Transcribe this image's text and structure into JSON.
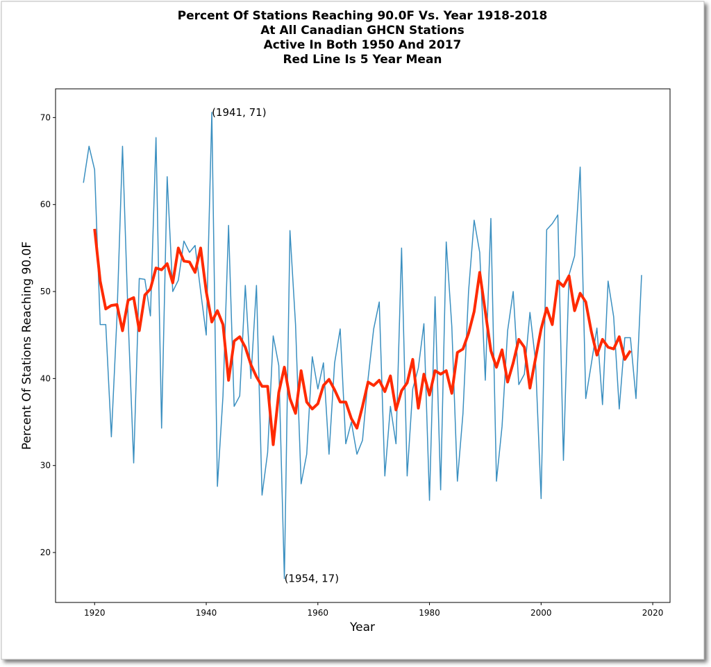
{
  "chart_data": {
    "type": "line",
    "title": [
      "Percent Of Stations Reaching 90.0F Vs. Year 1918-2018",
      "At All Canadian GHCN Stations",
      "Active In Both 1950 And 2017",
      "Red Line Is 5 Year Mean"
    ],
    "x_label": "Year",
    "y_label": "Percent Of Stations Reaching 90.0F",
    "x": [
      1918,
      1919,
      1920,
      1921,
      1922,
      1923,
      1924,
      1925,
      1926,
      1927,
      1928,
      1929,
      1930,
      1931,
      1932,
      1933,
      1934,
      1935,
      1936,
      1937,
      1938,
      1939,
      1940,
      1941,
      1942,
      1943,
      1944,
      1945,
      1946,
      1947,
      1948,
      1949,
      1950,
      1951,
      1952,
      1953,
      1954,
      1955,
      1956,
      1957,
      1958,
      1959,
      1960,
      1961,
      1962,
      1963,
      1964,
      1965,
      1966,
      1967,
      1968,
      1969,
      1970,
      1971,
      1972,
      1973,
      1974,
      1975,
      1976,
      1977,
      1978,
      1979,
      1980,
      1981,
      1982,
      1983,
      1984,
      1985,
      1986,
      1987,
      1988,
      1989,
      1990,
      1991,
      1992,
      1993,
      1994,
      1995,
      1996,
      1997,
      1998,
      1999,
      2000,
      2001,
      2002,
      2003,
      2004,
      2005,
      2006,
      2007,
      2008,
      2009,
      2010,
      2011,
      2012,
      2013,
      2014,
      2015,
      2016,
      2017,
      2018
    ],
    "series": [
      {
        "color": "#3a8fc0",
        "width": 1.5,
        "values": [
          62.5,
          66.7,
          64,
          46.2,
          46.2,
          33.3,
          47,
          66.7,
          47,
          30.3,
          51.5,
          51.4,
          47.2,
          67.7,
          34.3,
          63.2,
          50,
          51.3,
          55.8,
          54.5,
          55.3,
          50,
          45,
          70.6,
          27.6,
          38,
          57.6,
          36.8,
          38,
          50.7,
          40,
          50.7,
          26.6,
          31.5,
          44.9,
          41.5,
          17,
          57,
          46.2,
          27.9,
          31.3,
          42.5,
          38.8,
          41.8,
          31.3,
          41.8,
          45.7,
          32.5,
          35,
          31.3,
          32.9,
          40,
          45.7,
          48.8,
          28.8,
          36.8,
          32.5,
          55,
          28.8,
          38.8,
          41.2,
          46.3,
          26,
          49.4,
          27.2,
          55.7,
          46,
          28.2,
          36,
          50,
          58.2,
          54.5,
          39.8,
          58.4,
          28.2,
          34.5,
          45.5,
          50,
          39.3,
          40.5,
          47.6,
          42,
          26.2,
          57.1,
          57.8,
          58.8,
          30.6,
          51.9,
          54.1,
          64.3,
          37.7,
          41.7,
          45.8,
          37,
          51.2,
          47.1,
          36.5,
          44.7,
          44.7,
          37.7,
          51.9
        ]
      },
      {
        "color": "#ff2a00",
        "width": 4,
        "values": [
          null,
          null,
          57.2,
          51.2,
          48,
          48.4,
          48.5,
          45.5,
          49,
          49.3,
          45.5,
          49.6,
          50.3,
          52.7,
          52.5,
          53.2,
          51,
          55,
          53.5,
          53.4,
          52.2,
          55,
          50,
          46.5,
          47.8,
          46.2,
          39.8,
          44.3,
          44.8,
          43.6,
          41.6,
          40.2,
          39.1,
          39.1,
          32.4,
          38.4,
          41.3,
          37.7,
          36,
          40.9,
          37.3,
          36.5,
          37.1,
          39.2,
          39.9,
          38.7,
          37.3,
          37.3,
          35.4,
          34.3,
          36.8,
          39.6,
          39.2,
          39.8,
          38.5,
          40.3,
          36.4,
          38.6,
          39.5,
          42.2,
          36.6,
          40.5,
          38.1,
          40.9,
          40.5,
          40.9,
          38.3,
          43,
          43.4,
          45.2,
          47.7,
          52.2,
          47.7,
          43.2,
          41.3,
          43.3,
          39.6,
          41.8,
          44.5,
          43.6,
          38.9,
          42.3,
          45.7,
          48.1,
          46.2,
          51.2,
          50.6,
          51.8,
          47.8,
          49.8,
          48.8,
          45.4,
          42.7,
          44.5,
          43.6,
          43.4,
          44.8,
          42.2,
          43.2,
          null,
          null
        ]
      }
    ],
    "annotations": [
      {
        "text": "(1941, 71)",
        "x": 1941,
        "y": 70.6
      },
      {
        "text": "(1954, 17)",
        "x": 1954,
        "y": 17
      }
    ],
    "xlim": [
      1913,
      2023.1
    ],
    "ylim": [
      14.26,
      73.3
    ],
    "xticks": [
      1920,
      1940,
      1960,
      1980,
      2000,
      2020
    ],
    "yticks": [
      20,
      30,
      40,
      50,
      60,
      70
    ],
    "grid": false
  }
}
